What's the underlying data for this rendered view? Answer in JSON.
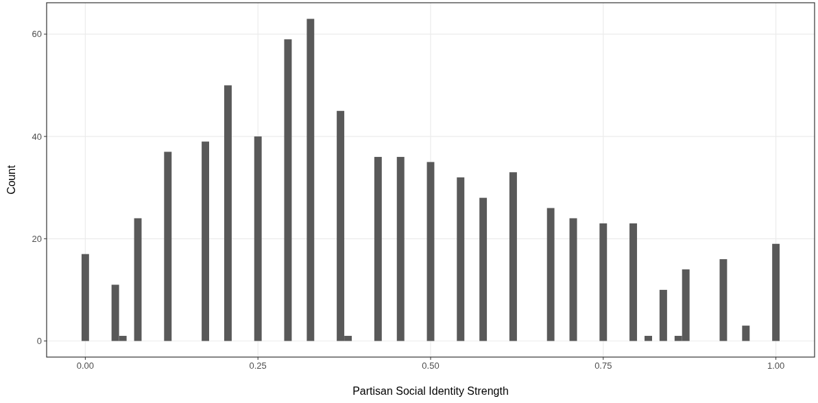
{
  "chart_data": {
    "type": "histogram",
    "xlabel": "Partisan Social Identity Strength",
    "ylabel": "Count",
    "color": "#595959",
    "bins": [
      -0.0054,
      0.0054,
      0.0163,
      0.0272,
      0.038,
      0.0489,
      0.0598,
      0.0707,
      0.0815,
      0.0924,
      0.1033,
      0.1141,
      0.125,
      0.1359,
      0.1467,
      0.1576,
      0.1685,
      0.1793,
      0.1902,
      0.2011,
      0.212,
      0.2228,
      0.2337,
      0.2446,
      0.2554,
      0.2663,
      0.2772,
      0.288,
      0.2989,
      0.3098,
      0.3207,
      0.3315,
      0.3424,
      0.3533,
      0.3641,
      0.375,
      0.3859,
      0.3967,
      0.4076,
      0.4185,
      0.4293,
      0.4402,
      0.4511,
      0.462,
      0.4728,
      0.4837,
      0.4946,
      0.5054,
      0.5163,
      0.5272,
      0.538,
      0.5489,
      0.5598,
      0.5707,
      0.5815,
      0.5924,
      0.6033,
      0.6141,
      0.625,
      0.6359,
      0.6467,
      0.6576,
      0.6685,
      0.6793,
      0.6902,
      0.7011,
      0.712,
      0.7228,
      0.7337,
      0.7446,
      0.7554,
      0.7663,
      0.7772,
      0.788,
      0.7989,
      0.8098,
      0.8207,
      0.8315,
      0.8424,
      0.8533,
      0.8641,
      0.875,
      0.8859,
      0.8967,
      0.9076,
      0.9185,
      0.9293,
      0.9402,
      0.9511,
      0.962,
      0.9728,
      0.9837,
      0.9946,
      1.0054
    ],
    "values": [
      17,
      0,
      0,
      0,
      11,
      1,
      0,
      24,
      0,
      0,
      0,
      37,
      0,
      0,
      0,
      0,
      39,
      0,
      0,
      50,
      0,
      0,
      0,
      40,
      0,
      0,
      0,
      59,
      0,
      0,
      63,
      0,
      0,
      0,
      45,
      1,
      0,
      0,
      0,
      36,
      0,
      0,
      36,
      0,
      0,
      0,
      35,
      0,
      0,
      0,
      32,
      0,
      0,
      28,
      0,
      0,
      0,
      33,
      0,
      0,
      0,
      0,
      26,
      0,
      0,
      24,
      0,
      0,
      0,
      23,
      0,
      0,
      0,
      23,
      0,
      1,
      0,
      10,
      0,
      1,
      14,
      0,
      0,
      0,
      0,
      16,
      0,
      0,
      3,
      0,
      0,
      0,
      19
    ],
    "xlim": [
      -0.056,
      1.056
    ],
    "ylim": [
      -3.15,
      66.15
    ],
    "xticks": [
      {
        "value": 0,
        "label": "0.00"
      },
      {
        "value": 0.25,
        "label": "0.25"
      },
      {
        "value": 0.5,
        "label": "0.50"
      },
      {
        "value": 0.75,
        "label": "0.75"
      },
      {
        "value": 1,
        "label": "1.00"
      }
    ],
    "yticks": [
      0,
      20,
      40,
      60
    ],
    "grid": true
  }
}
